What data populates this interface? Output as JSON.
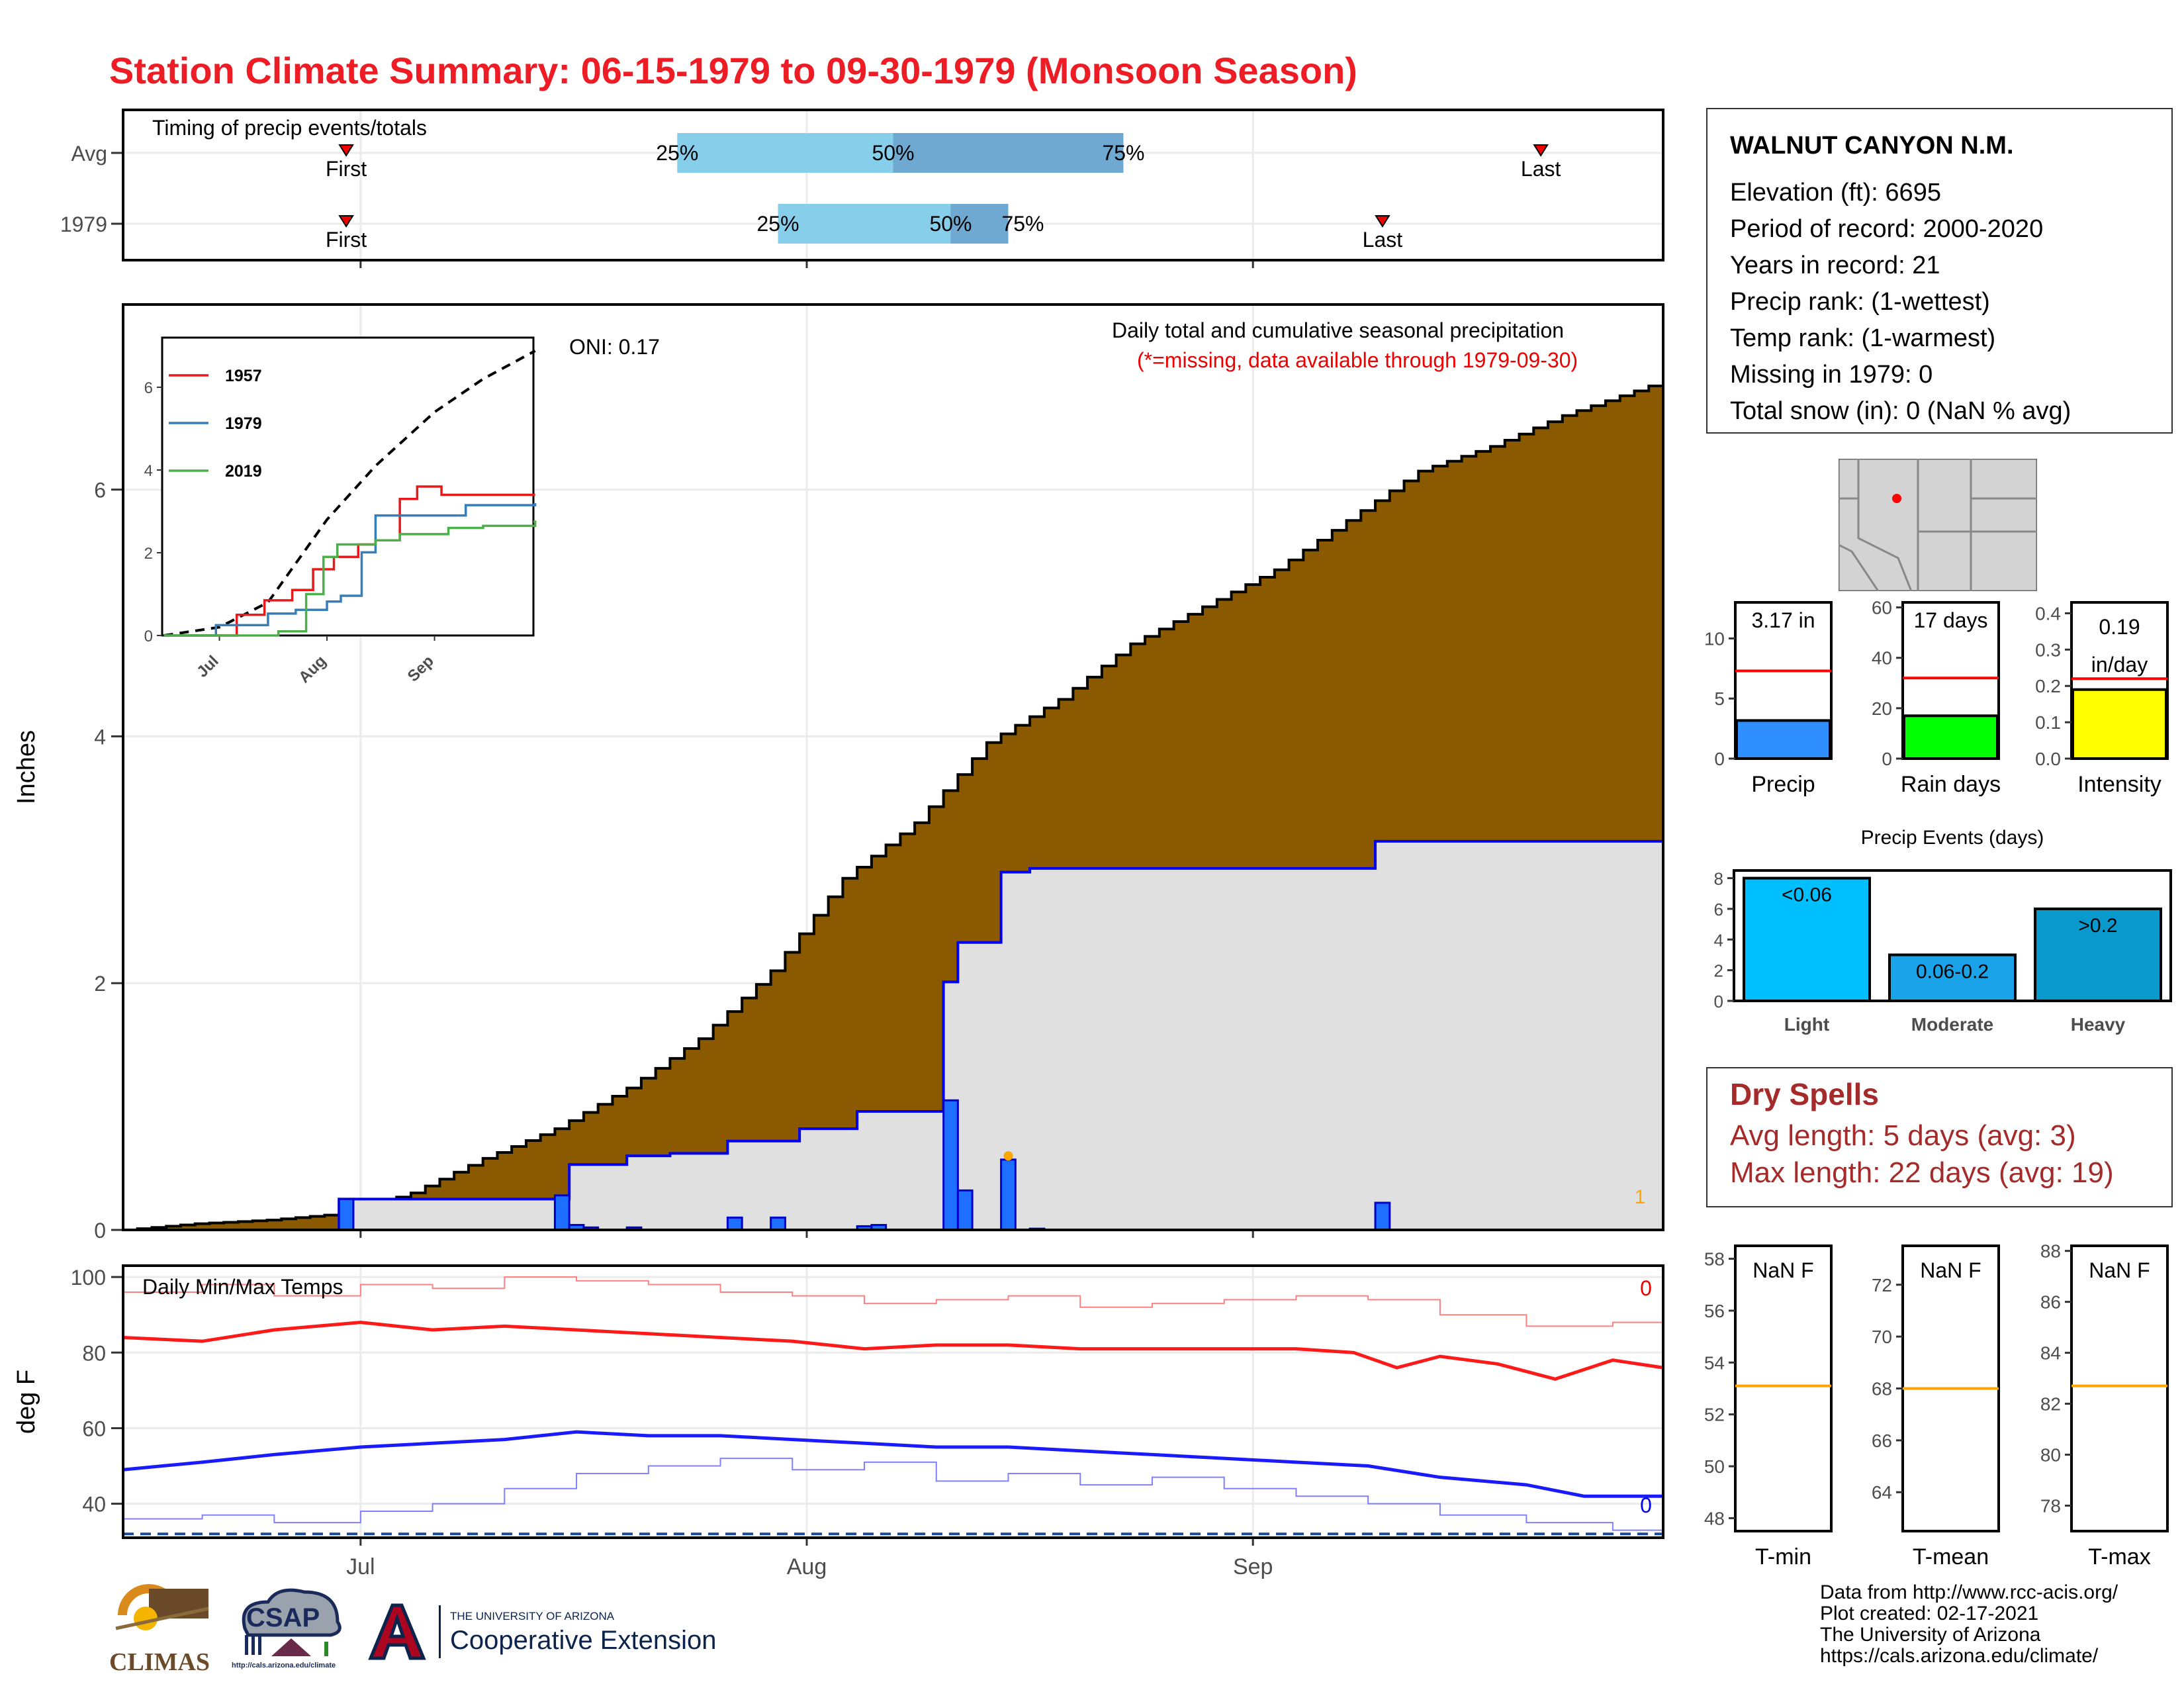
{
  "title": "Station Climate Summary: 06-15-1979 to 09-30-1979 (Monsoon Season)",
  "colors": {
    "title": "#ee1c25",
    "cumulative_fill": "#8b5a00",
    "year_area": "#e0e0e0",
    "bar_blue": "#1e6fff",
    "tmax": "#ff1a1a",
    "tmin": "#1a1aff",
    "dry_spell_text": "#a52a2a",
    "rain_days_bar": "#00ff00",
    "intensity_bar": "#ffff00",
    "precip_bar": "#2f8fff"
  },
  "station": {
    "name": "WALNUT CANYON N.M.",
    "lines": [
      "Elevation (ft): 6695",
      "Period of record: 2000-2020",
      "Years in record: 21",
      "Precip rank:  (1-wettest)",
      "Temp rank:  (1-warmest)",
      "Missing in 1979: 0",
      "Total snow (in): 0 (NaN % avg)"
    ]
  },
  "dry_spells": {
    "title": "Dry Spells",
    "avg_length": "Avg length: 5 days (avg: 3)",
    "max_length": "Max length: 22 days (avg: 19)"
  },
  "credits": {
    "line1": "Data from http://www.rcc-acis.org/",
    "line2": "Plot created: 02-17-2021",
    "line3": "The University of Arizona",
    "line4": "https://cals.arizona.edu/climate/"
  },
  "logos": {
    "climas": "CLIMAS",
    "csap": "CSAP",
    "csap_url": "http://cals.arizona.edu/climate",
    "ua_line1": "THE UNIVERSITY OF ARIZONA",
    "ua_line2": "Cooperative Extension"
  },
  "chart_data": [
    {
      "id": "timing",
      "type": "bar",
      "title": "Timing of precip events/totals",
      "rows": [
        {
          "label": "Avg",
          "first": "1979-06-30",
          "q25": "1979-07-23",
          "q50": "1979-08-07",
          "q75": "1979-08-23",
          "last": "1979-09-21",
          "first_label": "First",
          "last_label": "Last",
          "q25_label": "25%",
          "q50_label": "50%",
          "q75_label": "75%"
        },
        {
          "label": "1979",
          "first": "1979-06-30",
          "q25": "1979-07-30",
          "q50": "1979-08-11",
          "q75": "1979-08-15",
          "last": "1979-09-10",
          "first_label": "First",
          "last_label": "Last",
          "q25_label": "25%",
          "q50_label": "50%",
          "q75_label": "75%"
        }
      ],
      "x_ticks": [
        "Jul",
        "Aug",
        "Sep"
      ]
    },
    {
      "id": "precip",
      "type": "area",
      "title": "Daily total and cumulative seasonal precipitation",
      "subtitle": "(*=missing, data available through 1979-09-30)",
      "oni": "ONI: 0.17",
      "ylabel": "Inches",
      "ylim": [
        0,
        7.5
      ],
      "y_ticks": [
        0,
        2,
        4,
        6
      ],
      "x_ticks": [
        "Jul",
        "Aug",
        "Sep"
      ],
      "x_range": [
        "1979-06-15",
        "1979-09-30"
      ],
      "missing_count": "1",
      "avg_cumulative": [
        {
          "x": "1979-06-15",
          "y": 0.0
        },
        {
          "x": "1979-06-20",
          "y": 0.05
        },
        {
          "x": "1979-06-25",
          "y": 0.08
        },
        {
          "x": "1979-06-30",
          "y": 0.13
        },
        {
          "x": "1979-07-05",
          "y": 0.3
        },
        {
          "x": "1979-07-10",
          "y": 0.58
        },
        {
          "x": "1979-07-15",
          "y": 0.82
        },
        {
          "x": "1979-07-20",
          "y": 1.15
        },
        {
          "x": "1979-07-25",
          "y": 1.55
        },
        {
          "x": "1979-07-30",
          "y": 2.1
        },
        {
          "x": "1979-08-04",
          "y": 2.85
        },
        {
          "x": "1979-08-09",
          "y": 3.3
        },
        {
          "x": "1979-08-14",
          "y": 3.95
        },
        {
          "x": "1979-08-19",
          "y": 4.3
        },
        {
          "x": "1979-08-24",
          "y": 4.75
        },
        {
          "x": "1979-08-29",
          "y": 5.05
        },
        {
          "x": "1979-09-03",
          "y": 5.35
        },
        {
          "x": "1979-09-08",
          "y": 5.75
        },
        {
          "x": "1979-09-13",
          "y": 6.15
        },
        {
          "x": "1979-09-18",
          "y": 6.35
        },
        {
          "x": "1979-09-23",
          "y": 6.6
        },
        {
          "x": "1979-09-30",
          "y": 6.88
        }
      ],
      "year_cumulative": [
        {
          "x": "1979-06-15",
          "y": 0.0
        },
        {
          "x": "1979-06-30",
          "y": 0.25
        },
        {
          "x": "1979-07-15",
          "y": 0.25
        },
        {
          "x": "1979-07-16",
          "y": 0.53
        },
        {
          "x": "1979-07-20",
          "y": 0.6
        },
        {
          "x": "1979-07-23",
          "y": 0.62
        },
        {
          "x": "1979-07-27",
          "y": 0.72
        },
        {
          "x": "1979-08-01",
          "y": 0.82
        },
        {
          "x": "1979-08-05",
          "y": 0.96
        },
        {
          "x": "1979-08-11",
          "y": 2.01
        },
        {
          "x": "1979-08-12",
          "y": 2.33
        },
        {
          "x": "1979-08-15",
          "y": 2.9
        },
        {
          "x": "1979-08-17",
          "y": 2.93
        },
        {
          "x": "1979-09-10",
          "y": 3.15
        },
        {
          "x": "1979-09-30",
          "y": 3.17
        }
      ],
      "daily_bars": [
        {
          "x": "1979-06-30",
          "y": 0.25
        },
        {
          "x": "1979-07-15",
          "y": 0.28
        },
        {
          "x": "1979-07-16",
          "y": 0.04
        },
        {
          "x": "1979-07-17",
          "y": 0.02
        },
        {
          "x": "1979-07-20",
          "y": 0.02
        },
        {
          "x": "1979-07-27",
          "y": 0.1
        },
        {
          "x": "1979-07-30",
          "y": 0.1
        },
        {
          "x": "1979-08-05",
          "y": 0.03
        },
        {
          "x": "1979-08-06",
          "y": 0.04
        },
        {
          "x": "1979-08-11",
          "y": 1.05
        },
        {
          "x": "1979-08-12",
          "y": 0.32
        },
        {
          "x": "1979-08-15",
          "y": 0.57
        },
        {
          "x": "1979-08-17",
          "y": 0.01
        },
        {
          "x": "1979-09-10",
          "y": 0.22
        }
      ],
      "inset": {
        "type": "line",
        "ylim": [
          0,
          7.2
        ],
        "y_ticks": [
          0,
          2,
          4,
          6
        ],
        "x_ticks": [
          "Jul",
          "Aug",
          "Sep"
        ],
        "series": [
          {
            "name": "1957",
            "color": "#e41a1c",
            "values": [
              {
                "x": "1979-06-15",
                "y": 0
              },
              {
                "x": "1979-07-06",
                "y": 0.5
              },
              {
                "x": "1979-07-14",
                "y": 0.85
              },
              {
                "x": "1979-07-22",
                "y": 1.1
              },
              {
                "x": "1979-07-28",
                "y": 1.6
              },
              {
                "x": "1979-08-03",
                "y": 1.9
              },
              {
                "x": "1979-08-10",
                "y": 2.2
              },
              {
                "x": "1979-08-15",
                "y": 2.3
              },
              {
                "x": "1979-08-22",
                "y": 3.3
              },
              {
                "x": "1979-08-27",
                "y": 3.6
              },
              {
                "x": "1979-09-03",
                "y": 3.4
              },
              {
                "x": "1979-09-30",
                "y": 3.4
              }
            ]
          },
          {
            "name": "1979",
            "color": "#377eb8",
            "values": [
              {
                "x": "1979-06-15",
                "y": 0
              },
              {
                "x": "1979-06-30",
                "y": 0.25
              },
              {
                "x": "1979-07-15",
                "y": 0.53
              },
              {
                "x": "1979-07-23",
                "y": 0.62
              },
              {
                "x": "1979-08-01",
                "y": 0.82
              },
              {
                "x": "1979-08-05",
                "y": 0.96
              },
              {
                "x": "1979-08-11",
                "y": 2.01
              },
              {
                "x": "1979-08-15",
                "y": 2.9
              },
              {
                "x": "1979-09-10",
                "y": 3.15
              },
              {
                "x": "1979-09-30",
                "y": 3.17
              }
            ]
          },
          {
            "name": "2019",
            "color": "#4daf4a",
            "values": [
              {
                "x": "1979-06-15",
                "y": 0
              },
              {
                "x": "1979-07-18",
                "y": 0.1
              },
              {
                "x": "1979-07-26",
                "y": 1.0
              },
              {
                "x": "1979-07-31",
                "y": 1.9
              },
              {
                "x": "1979-08-04",
                "y": 2.2
              },
              {
                "x": "1979-08-15",
                "y": 2.3
              },
              {
                "x": "1979-08-22",
                "y": 2.45
              },
              {
                "x": "1979-09-05",
                "y": 2.6
              },
              {
                "x": "1979-09-15",
                "y": 2.65
              },
              {
                "x": "1979-09-30",
                "y": 2.75
              }
            ]
          }
        ],
        "avg_dashed": [
          {
            "x": "1979-06-15",
            "y": 0
          },
          {
            "x": "1979-07-01",
            "y": 0.2
          },
          {
            "x": "1979-07-15",
            "y": 0.8
          },
          {
            "x": "1979-08-01",
            "y": 2.8
          },
          {
            "x": "1979-08-15",
            "y": 4.1
          },
          {
            "x": "1979-09-01",
            "y": 5.4
          },
          {
            "x": "1979-09-15",
            "y": 6.2
          },
          {
            "x": "1979-09-30",
            "y": 6.88
          }
        ]
      }
    },
    {
      "id": "temps",
      "type": "line",
      "title": "Daily Min/Max Temps",
      "ylabel": "deg F",
      "ylim": [
        31,
        103
      ],
      "y_ticks": [
        40,
        60,
        80,
        100
      ],
      "x_ticks": [
        "Jul",
        "Aug",
        "Sep"
      ],
      "freeze_line": 32,
      "tmax_missing": "0",
      "tmin_missing": "0",
      "avg_max": [
        {
          "x": "1979-06-15",
          "y": 84
        },
        {
          "x": "1979-06-20",
          "y": 83
        },
        {
          "x": "1979-06-25",
          "y": 86
        },
        {
          "x": "1979-07-01",
          "y": 88
        },
        {
          "x": "1979-07-06",
          "y": 86
        },
        {
          "x": "1979-07-11",
          "y": 87
        },
        {
          "x": "1979-07-16",
          "y": 86
        },
        {
          "x": "1979-07-21",
          "y": 85
        },
        {
          "x": "1979-07-26",
          "y": 84
        },
        {
          "x": "1979-07-31",
          "y": 83
        },
        {
          "x": "1979-08-05",
          "y": 81
        },
        {
          "x": "1979-08-10",
          "y": 82
        },
        {
          "x": "1979-08-15",
          "y": 82
        },
        {
          "x": "1979-08-20",
          "y": 81
        },
        {
          "x": "1979-08-25",
          "y": 81
        },
        {
          "x": "1979-08-30",
          "y": 81
        },
        {
          "x": "1979-09-04",
          "y": 81
        },
        {
          "x": "1979-09-08",
          "y": 80
        },
        {
          "x": "1979-09-11",
          "y": 76
        },
        {
          "x": "1979-09-14",
          "y": 79
        },
        {
          "x": "1979-09-18",
          "y": 77
        },
        {
          "x": "1979-09-22",
          "y": 73
        },
        {
          "x": "1979-09-26",
          "y": 78
        },
        {
          "x": "1979-09-30",
          "y": 76
        }
      ],
      "avg_min": [
        {
          "x": "1979-06-15",
          "y": 49
        },
        {
          "x": "1979-06-20",
          "y": 51
        },
        {
          "x": "1979-06-25",
          "y": 53
        },
        {
          "x": "1979-07-01",
          "y": 55
        },
        {
          "x": "1979-07-06",
          "y": 56
        },
        {
          "x": "1979-07-11",
          "y": 57
        },
        {
          "x": "1979-07-16",
          "y": 59
        },
        {
          "x": "1979-07-21",
          "y": 58
        },
        {
          "x": "1979-07-26",
          "y": 58
        },
        {
          "x": "1979-07-31",
          "y": 57
        },
        {
          "x": "1979-08-05",
          "y": 56
        },
        {
          "x": "1979-08-10",
          "y": 55
        },
        {
          "x": "1979-08-15",
          "y": 55
        },
        {
          "x": "1979-08-20",
          "y": 54
        },
        {
          "x": "1979-08-25",
          "y": 53
        },
        {
          "x": "1979-08-30",
          "y": 52
        },
        {
          "x": "1979-09-04",
          "y": 51
        },
        {
          "x": "1979-09-09",
          "y": 50
        },
        {
          "x": "1979-09-14",
          "y": 47
        },
        {
          "x": "1979-09-20",
          "y": 45
        },
        {
          "x": "1979-09-24",
          "y": 42
        },
        {
          "x": "1979-09-30",
          "y": 42
        }
      ],
      "record_max": [
        {
          "x": "1979-06-15",
          "y": 96
        },
        {
          "x": "1979-06-20",
          "y": 98
        },
        {
          "x": "1979-06-25",
          "y": 95
        },
        {
          "x": "1979-07-01",
          "y": 98
        },
        {
          "x": "1979-07-06",
          "y": 97
        },
        {
          "x": "1979-07-11",
          "y": 100
        },
        {
          "x": "1979-07-16",
          "y": 99
        },
        {
          "x": "1979-07-21",
          "y": 98
        },
        {
          "x": "1979-07-26",
          "y": 96
        },
        {
          "x": "1979-07-31",
          "y": 95
        },
        {
          "x": "1979-08-05",
          "y": 93
        },
        {
          "x": "1979-08-10",
          "y": 94
        },
        {
          "x": "1979-08-15",
          "y": 95
        },
        {
          "x": "1979-08-20",
          "y": 92
        },
        {
          "x": "1979-08-25",
          "y": 93
        },
        {
          "x": "1979-08-30",
          "y": 94
        },
        {
          "x": "1979-09-04",
          "y": 95
        },
        {
          "x": "1979-09-09",
          "y": 94
        },
        {
          "x": "1979-09-14",
          "y": 90
        },
        {
          "x": "1979-09-20",
          "y": 87
        },
        {
          "x": "1979-09-26",
          "y": 88
        },
        {
          "x": "1979-09-30",
          "y": 89
        }
      ],
      "record_min": [
        {
          "x": "1979-06-15",
          "y": 36
        },
        {
          "x": "1979-06-20",
          "y": 37
        },
        {
          "x": "1979-06-25",
          "y": 35
        },
        {
          "x": "1979-07-01",
          "y": 38
        },
        {
          "x": "1979-07-06",
          "y": 40
        },
        {
          "x": "1979-07-11",
          "y": 44
        },
        {
          "x": "1979-07-16",
          "y": 48
        },
        {
          "x": "1979-07-21",
          "y": 50
        },
        {
          "x": "1979-07-26",
          "y": 52
        },
        {
          "x": "1979-07-31",
          "y": 49
        },
        {
          "x": "1979-08-05",
          "y": 51
        },
        {
          "x": "1979-08-10",
          "y": 46
        },
        {
          "x": "1979-08-15",
          "y": 48
        },
        {
          "x": "1979-08-20",
          "y": 45
        },
        {
          "x": "1979-08-25",
          "y": 47
        },
        {
          "x": "1979-08-30",
          "y": 44
        },
        {
          "x": "1979-09-04",
          "y": 42
        },
        {
          "x": "1979-09-09",
          "y": 40
        },
        {
          "x": "1979-09-14",
          "y": 37
        },
        {
          "x": "1979-09-20",
          "y": 35
        },
        {
          "x": "1979-09-26",
          "y": 33
        },
        {
          "x": "1979-09-30",
          "y": 34
        }
      ]
    },
    {
      "id": "summary_bars",
      "type": "bar",
      "panels": [
        {
          "label": "Precip",
          "value": 3.17,
          "value_label": "3.17 in",
          "avg": 7.3,
          "ylim": [
            0,
            13
          ],
          "y_ticks": [
            0,
            5,
            10
          ],
          "color": "#2f8fff"
        },
        {
          "label": "Rain days",
          "value": 17,
          "value_label": "17 days",
          "avg": 32,
          "ylim": [
            0,
            62
          ],
          "y_ticks": [
            0,
            20,
            40,
            60
          ],
          "color": "#00ff00"
        },
        {
          "label": "Intensity",
          "value": 0.19,
          "value_label_1": "0.19",
          "value_label_2": "in/day",
          "avg": 0.22,
          "ylim": [
            0,
            0.43
          ],
          "y_ticks": [
            "0.0",
            "0.1",
            "0.2",
            "0.3",
            "0.4"
          ],
          "color": "#ffff00"
        }
      ]
    },
    {
      "id": "precip_events",
      "type": "bar",
      "title": "Precip Events (days)",
      "categories": [
        "Light",
        "Moderate",
        "Heavy"
      ],
      "value_labels": [
        "<0.06",
        "0.06-0.2",
        ">0.2"
      ],
      "values": [
        8,
        3,
        6
      ],
      "colors": [
        "#00bfff",
        "#1aa3e8",
        "#0a99cc"
      ],
      "ylim": [
        0,
        8.5
      ],
      "y_ticks": [
        0,
        2,
        4,
        6,
        8
      ]
    },
    {
      "id": "temp_summary",
      "type": "bar",
      "panels": [
        {
          "label": "T-min",
          "value_label": "NaN F",
          "avg": 53.1,
          "ylim": [
            47.5,
            58.5
          ],
          "y_ticks": [
            48,
            50,
            52,
            54,
            56,
            58
          ]
        },
        {
          "label": "T-mean",
          "value_label": "NaN F",
          "avg": 68.0,
          "ylim": [
            62.5,
            73.5
          ],
          "y_ticks": [
            64,
            66,
            68,
            70,
            72
          ]
        },
        {
          "label": "T-max",
          "value_label": "NaN F",
          "avg": 82.7,
          "ylim": [
            77,
            88.2
          ],
          "y_ticks": [
            78,
            80,
            82,
            84,
            86,
            88
          ]
        }
      ]
    }
  ]
}
